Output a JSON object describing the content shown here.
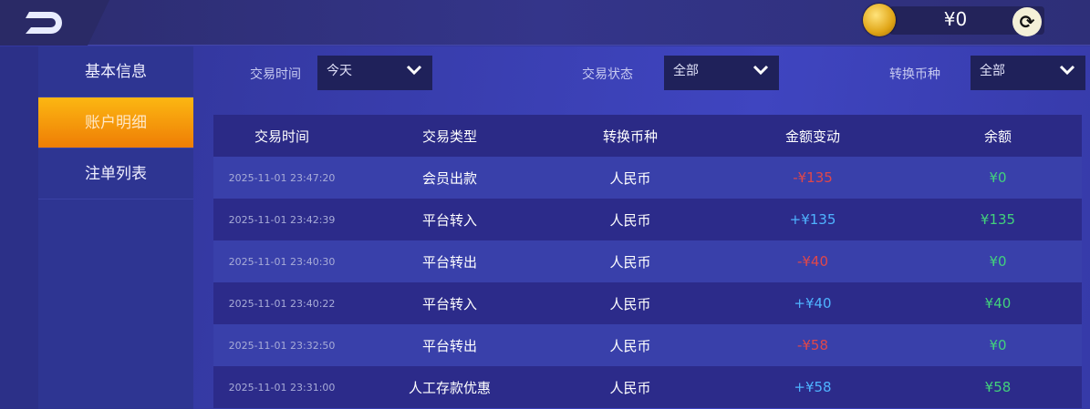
{
  "header": {
    "balance": "¥0",
    "icons": {
      "back": "back-icon",
      "coin": "coin-icon",
      "refresh": "refresh-icon"
    }
  },
  "sidebar": {
    "items": [
      {
        "label": "基本信息"
      },
      {
        "label": "账户明细",
        "active": true
      },
      {
        "label": "注单列表"
      }
    ]
  },
  "filters": {
    "time": {
      "label": "交易时间",
      "value": "今天"
    },
    "status": {
      "label": "交易状态",
      "value": "全部"
    },
    "currency": {
      "label": "转换币种",
      "value": "全部"
    }
  },
  "table": {
    "columns": [
      "交易时间",
      "交易类型",
      "转换币种",
      "金额变动",
      "余额"
    ],
    "rows": [
      {
        "time": "2025-11-01 23:47:20",
        "type": "会员出款",
        "currency": "人民币",
        "change": "-¥135",
        "balance": "¥0"
      },
      {
        "time": "2025-11-01 23:42:39",
        "type": "平台转入",
        "currency": "人民币",
        "change": "+¥135",
        "balance": "¥135"
      },
      {
        "time": "2025-11-01 23:40:30",
        "type": "平台转出",
        "currency": "人民币",
        "change": "-¥40",
        "balance": "¥0"
      },
      {
        "time": "2025-11-01 23:40:22",
        "type": "平台转入",
        "currency": "人民币",
        "change": "+¥40",
        "balance": "¥40"
      },
      {
        "time": "2025-11-01 23:32:50",
        "type": "平台转出",
        "currency": "人民币",
        "change": "-¥58",
        "balance": "¥0"
      },
      {
        "time": "2025-11-01 23:31:00",
        "type": "人工存款优惠",
        "currency": "人民币",
        "change": "+¥58",
        "balance": "¥58"
      }
    ]
  },
  "colors": {
    "active_tab": "#f59a0c",
    "negative": "#e0474a",
    "positive": "#4fb3ff",
    "balance": "#42d17c"
  }
}
